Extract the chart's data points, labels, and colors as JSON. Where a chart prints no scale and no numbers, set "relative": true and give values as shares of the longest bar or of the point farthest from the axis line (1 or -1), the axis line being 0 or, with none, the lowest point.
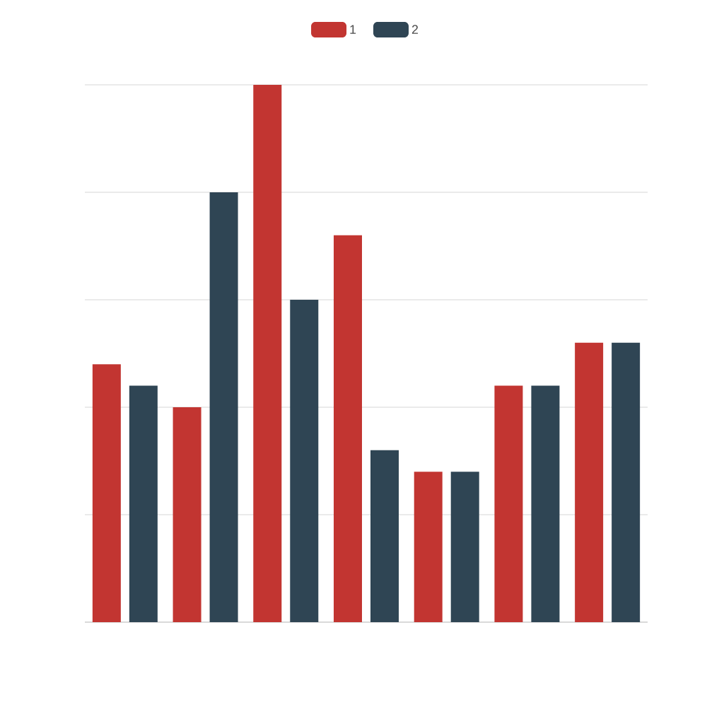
{
  "chart_data": {
    "type": "bar",
    "relative": true,
    "categories": [
      null,
      null,
      null,
      null,
      null,
      null,
      null
    ],
    "series": [
      {
        "name": "1",
        "color": "#c23531",
        "values": [
          0.48,
          0.4,
          1,
          0.72,
          0.28,
          0.44,
          0.52
        ]
      },
      {
        "name": "2",
        "color": "#2f4554",
        "values": [
          0.44,
          0.8,
          0.6,
          0.32,
          0.28,
          0.44,
          0.52
        ]
      }
    ],
    "grid": "y",
    "legend": "top"
  }
}
